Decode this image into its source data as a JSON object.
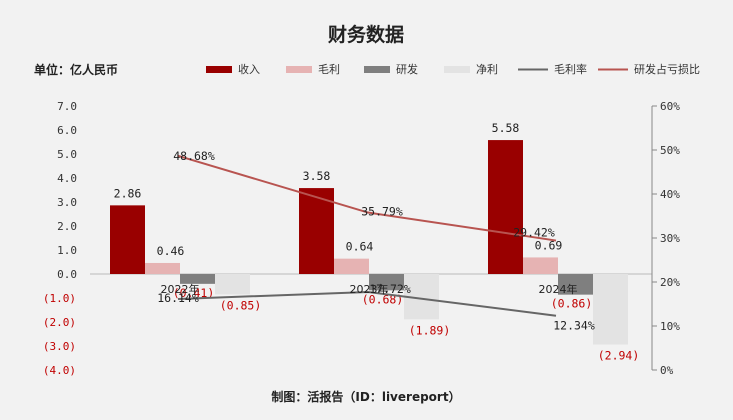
{
  "header": {
    "title": "财务数据",
    "unit": "单位：亿人民币",
    "footer": "制图：活报告（ID：livereport）"
  },
  "colors": {
    "revenue": "#990000",
    "gross_profit": "#e6b3b3",
    "rnd": "#7f7f7f",
    "net_profit": "#e3e3e3",
    "gross_margin_line": "#666666",
    "rnd_ratio_line": "#b85450",
    "negative_text": "#c00000"
  },
  "chart_data": {
    "type": "bar",
    "categories": [
      "2022年",
      "2023年",
      "2024年"
    ],
    "series": [
      {
        "name": "收入",
        "type": "bar",
        "axis": "left",
        "values": [
          2.86,
          3.58,
          5.58
        ],
        "labels": [
          "2.86",
          "3.58",
          "5.58"
        ]
      },
      {
        "name": "毛利",
        "type": "bar",
        "axis": "left",
        "values": [
          0.46,
          0.64,
          0.69
        ],
        "labels": [
          "0.46",
          "0.64",
          "0.69"
        ]
      },
      {
        "name": "研发",
        "type": "bar",
        "axis": "left",
        "values": [
          -0.41,
          -0.68,
          -0.86
        ],
        "labels": [
          "(0.41)",
          "(0.68)",
          "(0.86)"
        ]
      },
      {
        "name": "净利",
        "type": "bar",
        "axis": "left",
        "values": [
          -0.85,
          -1.89,
          -2.94
        ],
        "labels": [
          "(0.85)",
          "(1.89)",
          "(2.94)"
        ]
      },
      {
        "name": "毛利率",
        "type": "line",
        "axis": "right",
        "values": [
          16.14,
          17.72,
          12.34
        ],
        "labels": [
          "16.14%",
          "17.72%",
          "12.34%"
        ]
      },
      {
        "name": "研发占亏损比",
        "type": "line",
        "axis": "right",
        "values": [
          48.68,
          35.79,
          29.42
        ],
        "labels": [
          "48.68%",
          "35.79%",
          "29.42%"
        ]
      }
    ],
    "left_axis": {
      "min": -4.0,
      "max": 7.0,
      "step": 1.0,
      "tick_labels": [
        "7.0",
        "6.0",
        "5.0",
        "4.0",
        "3.0",
        "2.0",
        "1.0",
        "0.0",
        "(1.0)",
        "(2.0)",
        "(3.0)",
        "(4.0)"
      ]
    },
    "right_axis": {
      "min": 0,
      "max": 60,
      "step": 10,
      "tick_labels": [
        "60%",
        "50%",
        "40%",
        "30%",
        "20%",
        "10%",
        "0%"
      ]
    },
    "legend_position": "top-right",
    "grid": false
  }
}
